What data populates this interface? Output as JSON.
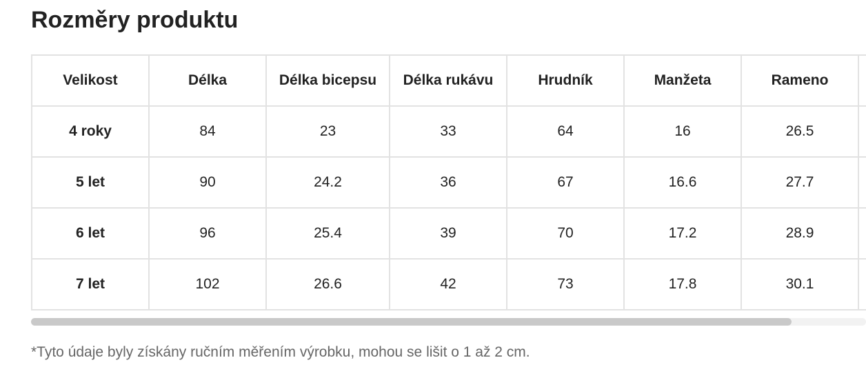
{
  "title": "Rozměry produktu",
  "table": {
    "header": [
      "Velikost",
      "Délka",
      "Délka bicepsu",
      "Délka rukávu",
      "Hrudník",
      "Manžeta",
      "Rameno"
    ],
    "rows": [
      [
        "4 roky",
        84,
        23,
        33,
        64,
        16,
        26.5
      ],
      [
        "5 let",
        90,
        24.2,
        36,
        67,
        16.6,
        27.7
      ],
      [
        "6 let",
        96,
        25.4,
        39,
        70,
        17.2,
        28.9
      ],
      [
        "7 let",
        102,
        26.6,
        42,
        73,
        17.8,
        30.1
      ]
    ]
  },
  "footnote": "*Tyto údaje byly získány ručním měřením výrobku, mohou se lišit o 1 až 2 cm."
}
